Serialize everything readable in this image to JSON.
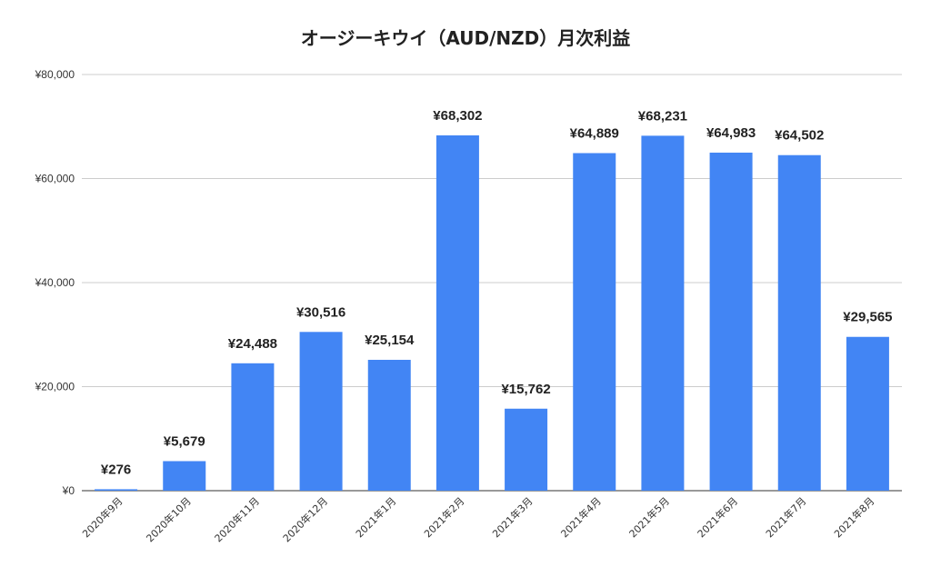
{
  "chart_data": {
    "type": "bar",
    "title": "オージーキウイ（AUD/NZD）月次利益",
    "xlabel": "",
    "ylabel": "",
    "categories": [
      "2020年9月",
      "2020年10月",
      "2020年11月",
      "2020年12月",
      "2021年1月",
      "2021年2月",
      "2021年3月",
      "2021年4月",
      "2021年5月",
      "2021年6月",
      "2021年7月",
      "2021年8月"
    ],
    "values": [
      276,
      5679,
      24488,
      30516,
      25154,
      68302,
      15762,
      64889,
      68231,
      64983,
      64502,
      29565
    ],
    "value_labels": [
      "¥276",
      "¥5,679",
      "¥24,488",
      "¥30,516",
      "¥25,154",
      "¥68,302",
      "¥15,762",
      "¥64,889",
      "¥68,231",
      "¥64,983",
      "¥64,502",
      "¥29,565"
    ],
    "ylim": [
      0,
      80000
    ],
    "yticks": [
      0,
      20000,
      40000,
      60000,
      80000
    ],
    "ytick_labels": [
      "¥0",
      "¥20,000",
      "¥40,000",
      "¥60,000",
      "¥80,000"
    ],
    "grid": true,
    "bar_color": "#4285f4",
    "grid_color": "#cccccc"
  }
}
